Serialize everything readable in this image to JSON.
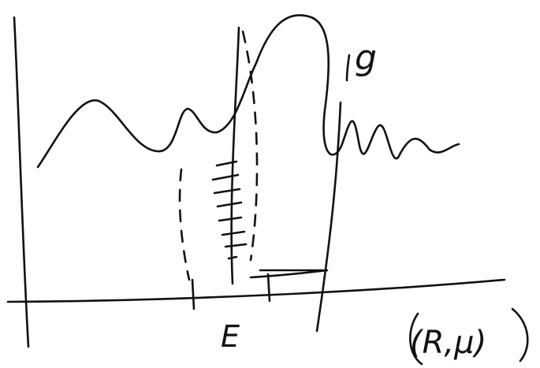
{
  "labels": {
    "function": "g",
    "set": "E",
    "space": "(R,μ)"
  }
}
